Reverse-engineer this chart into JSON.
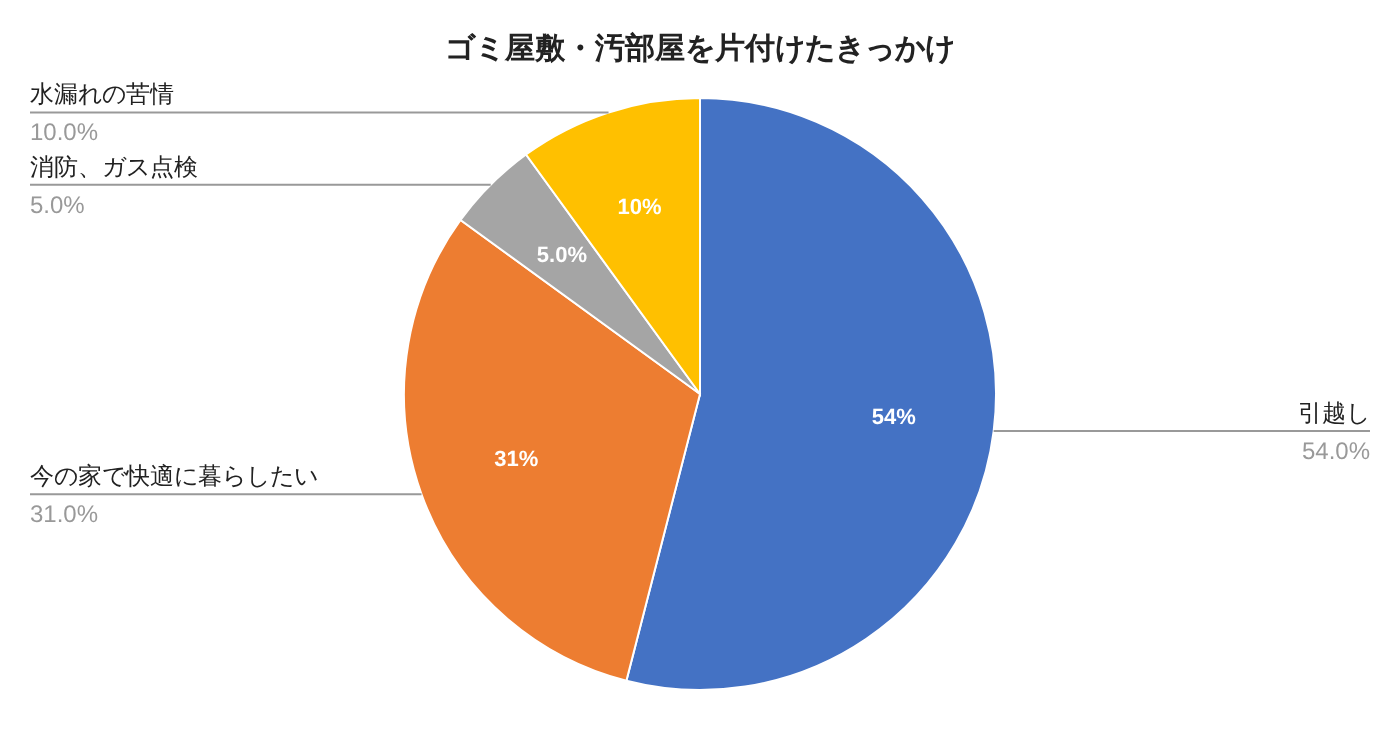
{
  "chart_data": {
    "type": "pie",
    "title": "ゴミ屋敷・汚部屋を片付けたきっかけ",
    "categories": [
      "引越し",
      "今の家で快適に暮らしたい",
      "消防、ガス点検",
      "水漏れの苦情"
    ],
    "values": [
      54,
      31,
      5,
      10
    ],
    "colors": [
      "#4472c4",
      "#ed7d31",
      "#a5a5a5",
      "#ffc000"
    ],
    "value_labels": [
      "54%",
      "31%",
      "5.0%",
      "10%"
    ],
    "annotations": [
      "54.0%",
      "31.0%",
      "5.0%",
      "10.0%"
    ]
  }
}
